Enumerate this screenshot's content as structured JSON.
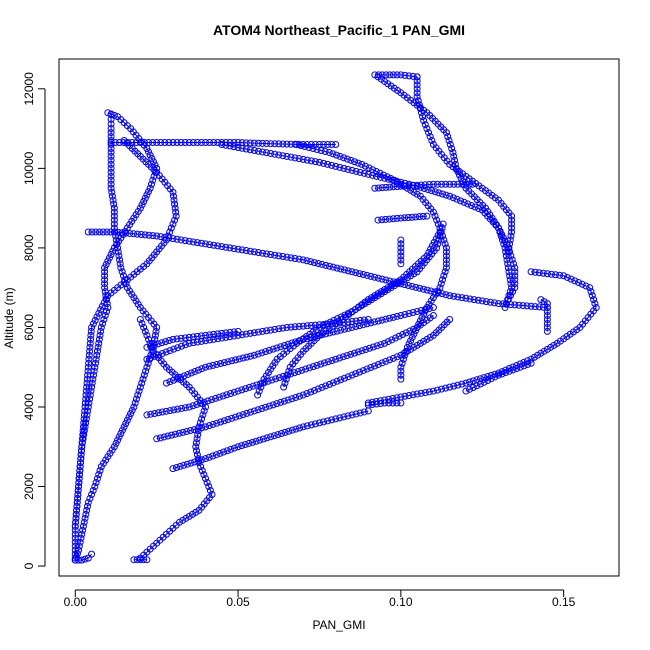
{
  "chart_data": {
    "type": "scatter",
    "title": "ATOM4 Northeast_Pacific_1 PAN_GMI",
    "xlabel": "PAN_GMI",
    "ylabel": "Altitude (m)",
    "xlim": [
      -0.005,
      0.167
    ],
    "ylim": [
      -250,
      12750
    ],
    "xticks": [
      0.0,
      0.05,
      0.1,
      0.15
    ],
    "xtick_labels": [
      "0.00",
      "0.05",
      "0.10",
      "0.15"
    ],
    "yticks": [
      0,
      2000,
      4000,
      6000,
      8000,
      10000,
      12000
    ],
    "ytick_labels": [
      "0",
      "2000",
      "4000",
      "6000",
      "8000",
      "10000",
      "12000"
    ],
    "grid": false,
    "legend": "none",
    "marker": "open-circle",
    "color": "#0000ff",
    "series": [
      {
        "points": [
          [
            0.0,
            150
          ],
          [
            0.001,
            400
          ],
          [
            0.002,
            800
          ],
          [
            0.003,
            1200
          ],
          [
            0.004,
            1600
          ],
          [
            0.006,
            2000
          ],
          [
            0.008,
            2500
          ],
          [
            0.012,
            3000
          ],
          [
            0.015,
            3500
          ],
          [
            0.018,
            4000
          ],
          [
            0.02,
            4500
          ],
          [
            0.022,
            5000
          ],
          [
            0.024,
            5500
          ],
          [
            0.025,
            6000
          ],
          [
            0.02,
            6500
          ],
          [
            0.016,
            7000
          ],
          [
            0.014,
            7500
          ],
          [
            0.013,
            8000
          ],
          [
            0.012,
            8500
          ],
          [
            0.012,
            9000
          ],
          [
            0.011,
            9500
          ],
          [
            0.011,
            10000
          ],
          [
            0.011,
            10500
          ],
          [
            0.011,
            11000
          ],
          [
            0.011,
            11350
          ]
        ]
      },
      {
        "points": [
          [
            0.011,
            10650
          ],
          [
            0.02,
            10650
          ],
          [
            0.03,
            10650
          ],
          [
            0.04,
            10650
          ],
          [
            0.05,
            10650
          ],
          [
            0.06,
            10620
          ],
          [
            0.07,
            10600
          ],
          [
            0.08,
            10600
          ]
        ]
      },
      {
        "points": [
          [
            0.01,
            11400
          ],
          [
            0.013,
            11300
          ],
          [
            0.017,
            11000
          ],
          [
            0.022,
            10500
          ],
          [
            0.025,
            10000
          ],
          [
            0.023,
            9500
          ],
          [
            0.02,
            9000
          ],
          [
            0.016,
            8500
          ],
          [
            0.012,
            8000
          ],
          [
            0.009,
            7500
          ],
          [
            0.009,
            7000
          ],
          [
            0.01,
            6500
          ],
          [
            0.008,
            6000
          ],
          [
            0.006,
            5000
          ],
          [
            0.004,
            4000
          ],
          [
            0.002,
            3000
          ],
          [
            0.001,
            2000
          ],
          [
            0.0,
            1000
          ],
          [
            0.0,
            200
          ]
        ]
      },
      {
        "points": [
          [
            0.015,
            10700
          ],
          [
            0.02,
            10300
          ],
          [
            0.025,
            9900
          ],
          [
            0.03,
            9400
          ],
          [
            0.031,
            8800
          ],
          [
            0.028,
            8200
          ],
          [
            0.022,
            7600
          ],
          [
            0.016,
            7200
          ],
          [
            0.01,
            6800
          ],
          [
            0.005,
            6000
          ],
          [
            0.004,
            5000
          ],
          [
            0.003,
            4000
          ],
          [
            0.002,
            3000
          ],
          [
            0.001,
            2000
          ],
          [
            0.0,
            1000
          ]
        ]
      },
      {
        "points": [
          [
            0.004,
            8400
          ],
          [
            0.012,
            8400
          ],
          [
            0.025,
            8300
          ],
          [
            0.04,
            8100
          ],
          [
            0.055,
            7900
          ],
          [
            0.07,
            7700
          ],
          [
            0.085,
            7400
          ],
          [
            0.1,
            7100
          ],
          [
            0.115,
            6800
          ],
          [
            0.13,
            6600
          ],
          [
            0.145,
            6500
          ]
        ]
      },
      {
        "points": [
          [
            0.02,
            6200
          ],
          [
            0.022,
            5800
          ],
          [
            0.024,
            5400
          ],
          [
            0.028,
            5000
          ],
          [
            0.035,
            4500
          ],
          [
            0.04,
            4000
          ],
          [
            0.038,
            3500
          ],
          [
            0.037,
            3000
          ],
          [
            0.038,
            2600
          ],
          [
            0.04,
            2200
          ],
          [
            0.042,
            1800
          ],
          [
            0.038,
            1400
          ],
          [
            0.032,
            1100
          ],
          [
            0.028,
            800
          ],
          [
            0.024,
            500
          ],
          [
            0.02,
            200
          ]
        ]
      },
      {
        "points": [
          [
            0.018,
            160
          ],
          [
            0.019,
            160
          ],
          [
            0.02,
            160
          ],
          [
            0.021,
            160
          ],
          [
            0.022,
            160
          ]
        ]
      },
      {
        "points": [
          [
            0.045,
            10600
          ],
          [
            0.055,
            10450
          ],
          [
            0.065,
            10300
          ],
          [
            0.075,
            10150
          ],
          [
            0.085,
            9950
          ],
          [
            0.095,
            9750
          ],
          [
            0.105,
            9550
          ],
          [
            0.115,
            9300
          ],
          [
            0.125,
            8950
          ],
          [
            0.13,
            8500
          ],
          [
            0.133,
            8000
          ],
          [
            0.135,
            7500
          ],
          [
            0.135,
            7000
          ],
          [
            0.133,
            6700
          ]
        ]
      },
      {
        "points": [
          [
            0.068,
            10600
          ],
          [
            0.078,
            10400
          ],
          [
            0.088,
            10100
          ],
          [
            0.098,
            9700
          ],
          [
            0.106,
            9300
          ],
          [
            0.11,
            8900
          ],
          [
            0.112,
            8500
          ],
          [
            0.114,
            8000
          ],
          [
            0.114,
            7500
          ],
          [
            0.112,
            7000
          ],
          [
            0.108,
            6500
          ],
          [
            0.105,
            6000
          ],
          [
            0.102,
            5500
          ],
          [
            0.1,
            5000
          ],
          [
            0.1,
            4700
          ]
        ]
      },
      {
        "points": [
          [
            0.092,
            9500
          ],
          [
            0.1,
            9550
          ],
          [
            0.11,
            9600
          ],
          [
            0.12,
            9600
          ],
          [
            0.122,
            9600
          ]
        ]
      },
      {
        "points": [
          [
            0.093,
            8700
          ],
          [
            0.1,
            8750
          ],
          [
            0.108,
            8800
          ]
        ]
      },
      {
        "points": [
          [
            0.092,
            12350
          ],
          [
            0.1,
            12350
          ],
          [
            0.105,
            12300
          ]
        ]
      },
      {
        "points": [
          [
            0.093,
            12300
          ],
          [
            0.1,
            11900
          ],
          [
            0.108,
            11400
          ],
          [
            0.114,
            10900
          ],
          [
            0.116,
            10400
          ],
          [
            0.117,
            10000
          ],
          [
            0.12,
            9500
          ],
          [
            0.126,
            9000
          ],
          [
            0.13,
            8500
          ],
          [
            0.132,
            8000
          ],
          [
            0.133,
            7500
          ],
          [
            0.134,
            7000
          ],
          [
            0.132,
            6500
          ]
        ]
      },
      {
        "points": [
          [
            0.105,
            12300
          ],
          [
            0.105,
            11800
          ],
          [
            0.107,
            11200
          ],
          [
            0.11,
            10600
          ],
          [
            0.115,
            10100
          ],
          [
            0.12,
            9800
          ],
          [
            0.125,
            9500
          ],
          [
            0.13,
            9200
          ],
          [
            0.134,
            8800
          ],
          [
            0.134,
            8400
          ],
          [
            0.133,
            7900
          ]
        ]
      },
      {
        "points": [
          [
            0.113,
            8600
          ],
          [
            0.111,
            8000
          ],
          [
            0.105,
            7400
          ],
          [
            0.095,
            6900
          ],
          [
            0.085,
            6400
          ],
          [
            0.075,
            6000
          ],
          [
            0.068,
            5600
          ],
          [
            0.062,
            5200
          ],
          [
            0.058,
            4700
          ],
          [
            0.056,
            4300
          ]
        ]
      },
      {
        "points": [
          [
            0.112,
            8400
          ],
          [
            0.108,
            7800
          ],
          [
            0.1,
            7200
          ],
          [
            0.09,
            6700
          ],
          [
            0.082,
            6200
          ],
          [
            0.075,
            5800
          ],
          [
            0.07,
            5400
          ],
          [
            0.066,
            5000
          ],
          [
            0.064,
            4500
          ]
        ]
      },
      {
        "points": [
          [
            0.1,
            8200
          ],
          [
            0.1,
            7600
          ]
        ]
      },
      {
        "points": [
          [
            0.025,
            3200
          ],
          [
            0.04,
            3500
          ],
          [
            0.055,
            3900
          ],
          [
            0.07,
            4300
          ],
          [
            0.085,
            4800
          ],
          [
            0.1,
            5300
          ],
          [
            0.11,
            5800
          ],
          [
            0.115,
            6200
          ]
        ]
      },
      {
        "points": [
          [
            0.022,
            3800
          ],
          [
            0.035,
            4000
          ],
          [
            0.05,
            4400
          ],
          [
            0.065,
            4800
          ],
          [
            0.08,
            5200
          ],
          [
            0.095,
            5600
          ],
          [
            0.105,
            6000
          ],
          [
            0.11,
            6300
          ]
        ]
      },
      {
        "points": [
          [
            0.028,
            4600
          ],
          [
            0.04,
            5000
          ],
          [
            0.055,
            5300
          ],
          [
            0.07,
            5700
          ],
          [
            0.085,
            6000
          ],
          [
            0.1,
            6300
          ],
          [
            0.11,
            6500
          ]
        ]
      },
      {
        "points": [
          [
            0.022,
            5200
          ],
          [
            0.035,
            5600
          ],
          [
            0.05,
            5800
          ],
          [
            0.065,
            6000
          ],
          [
            0.08,
            6100
          ],
          [
            0.09,
            6200
          ]
        ]
      },
      {
        "points": [
          [
            0.022,
            5500
          ],
          [
            0.03,
            5700
          ],
          [
            0.04,
            5800
          ],
          [
            0.05,
            5900
          ]
        ]
      },
      {
        "points": [
          [
            0.03,
            2450
          ],
          [
            0.04,
            2700
          ],
          [
            0.05,
            3000
          ],
          [
            0.06,
            3250
          ],
          [
            0.07,
            3500
          ],
          [
            0.08,
            3700
          ],
          [
            0.09,
            3900
          ]
        ]
      },
      {
        "points": [
          [
            0.09,
            4100
          ],
          [
            0.1,
            4250
          ],
          [
            0.11,
            4400
          ],
          [
            0.12,
            4600
          ],
          [
            0.13,
            4850
          ],
          [
            0.14,
            5200
          ],
          [
            0.148,
            5600
          ],
          [
            0.155,
            6000
          ],
          [
            0.16,
            6500
          ],
          [
            0.158,
            7000
          ],
          [
            0.15,
            7300
          ],
          [
            0.14,
            7400
          ]
        ]
      },
      {
        "points": [
          [
            0.145,
            5900
          ],
          [
            0.145,
            6300
          ],
          [
            0.145,
            6600
          ],
          [
            0.143,
            6700
          ]
        ]
      },
      {
        "points": [
          [
            0.12,
            4400
          ],
          [
            0.13,
            4800
          ],
          [
            0.14,
            5100
          ]
        ]
      },
      {
        "points": [
          [
            0.09,
            4050
          ],
          [
            0.095,
            4100
          ],
          [
            0.1,
            4100
          ]
        ]
      },
      {
        "points": [
          [
            0.0,
            150
          ],
          [
            0.002,
            150
          ],
          [
            0.004,
            200
          ],
          [
            0.005,
            300
          ]
        ]
      }
    ]
  }
}
